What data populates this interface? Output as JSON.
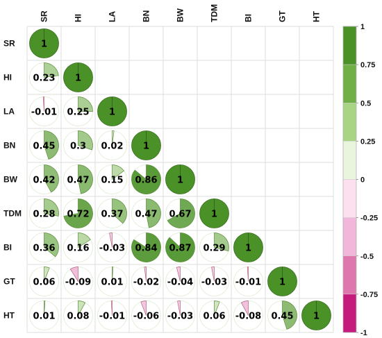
{
  "chart_data": {
    "type": "heatmap",
    "subtype": "correlation-matrix-pie",
    "title": "",
    "variables": [
      "SR",
      "HI",
      "LA",
      "BN",
      "BW",
      "TDM",
      "BI",
      "GT",
      "HT"
    ],
    "lower_triangle": [
      [
        1
      ],
      [
        0.23,
        1
      ],
      [
        -0.01,
        0.25,
        1
      ],
      [
        0.45,
        0.3,
        0.02,
        1
      ],
      [
        0.42,
        0.47,
        0.15,
        0.86,
        1
      ],
      [
        0.28,
        0.72,
        0.37,
        0.47,
        0.67,
        1
      ],
      [
        0.36,
        0.16,
        -0.03,
        0.84,
        0.87,
        0.29,
        1
      ],
      [
        0.06,
        -0.09,
        0.01,
        -0.02,
        -0.04,
        -0.03,
        -0.01,
        1
      ],
      [
        0.01,
        0.08,
        -0.01,
        -0.06,
        -0.03,
        0.06,
        -0.08,
        0.45,
        1
      ]
    ],
    "colorbar": {
      "range": [
        -1,
        1
      ],
      "tick_labels": [
        "1",
        "0.75",
        "0.5",
        "0.25",
        "0",
        "-0.25",
        "-0.5",
        "-0.75",
        "-1"
      ],
      "colors": [
        "#4a9128",
        "#6faf45",
        "#a8d483",
        "#e9f5dc",
        "#fde0ef",
        "#f1b6da",
        "#de77ae",
        "#c51b7d"
      ]
    },
    "positive_color": "#4a9128",
    "negative_color": "#c51b7d",
    "grid": true,
    "legend_position": "right"
  }
}
